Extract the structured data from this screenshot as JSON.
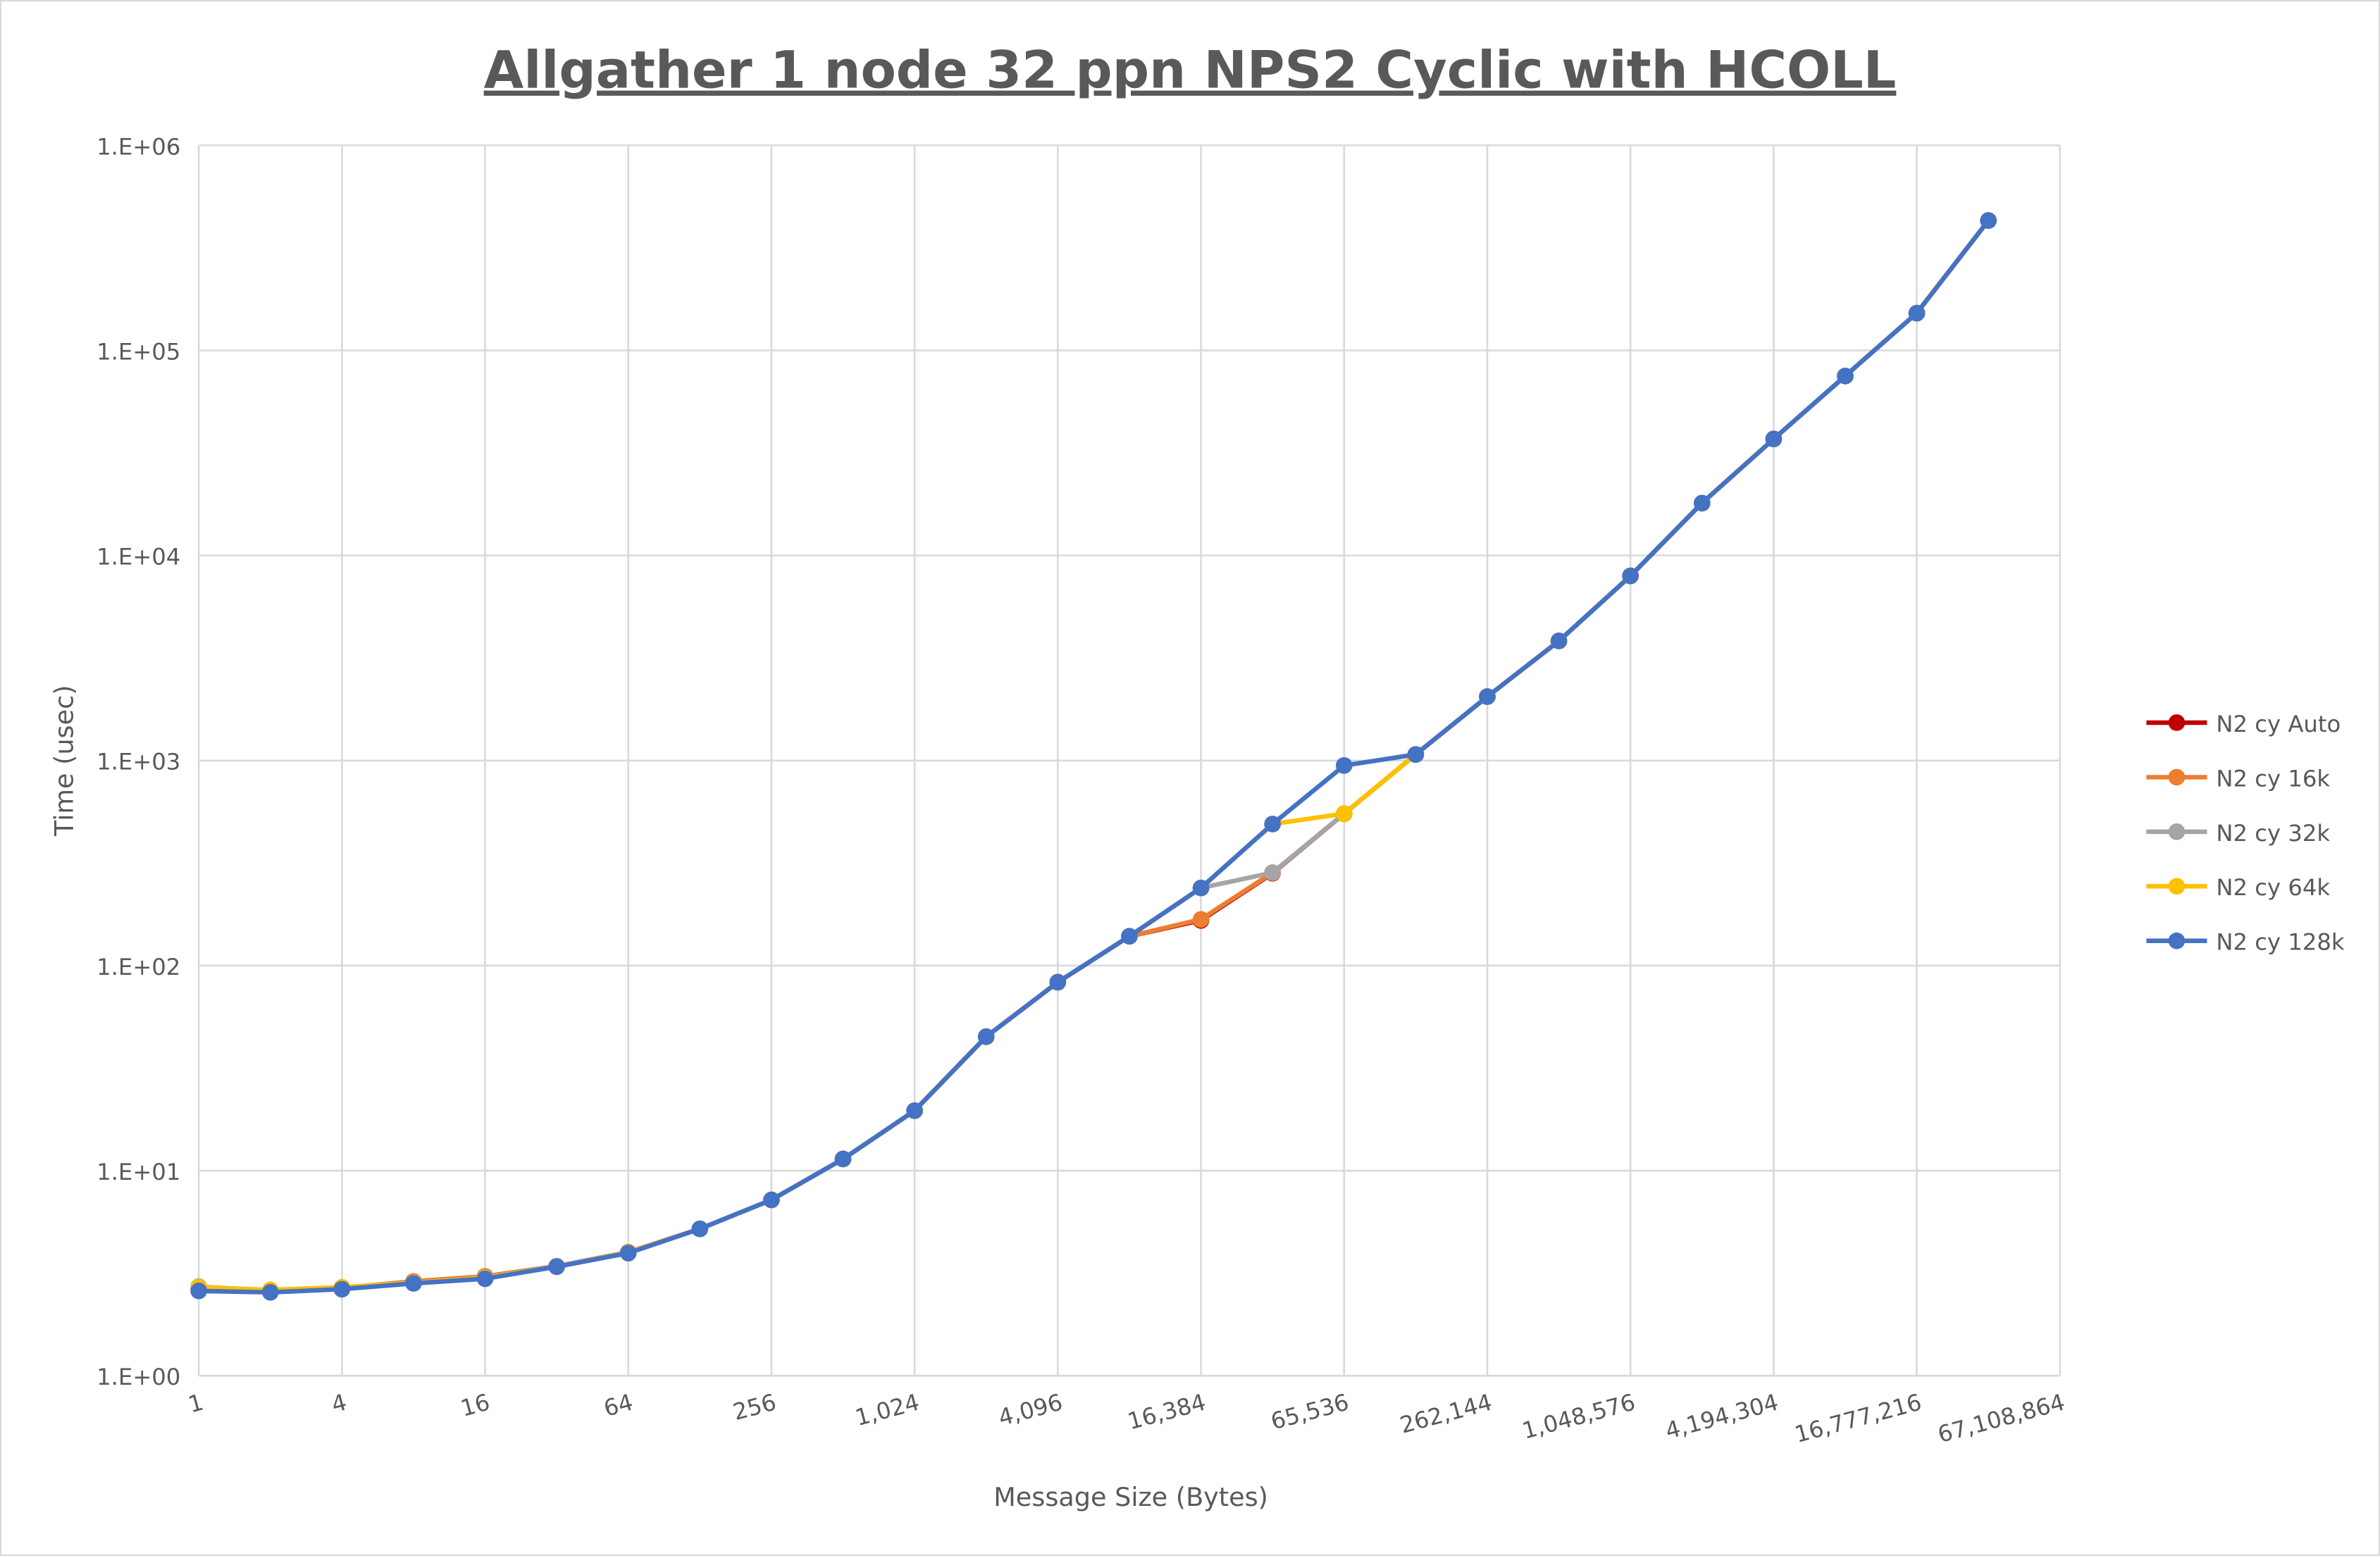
{
  "chart_data": {
    "type": "line",
    "title": "Allgather 1 node 32 ppn NPS2 Cyclic with HCOLL",
    "xlabel": "Message Size (Bytes)",
    "ylabel": "Time (usec)",
    "x_scale": "log2",
    "y_scale": "log10",
    "xlim": [
      1,
      67108864
    ],
    "ylim": [
      1,
      1000000
    ],
    "grid": true,
    "legend_position": "right",
    "x_ticks": [
      "1",
      "4",
      "16",
      "64",
      "256",
      "1,024",
      "4,096",
      "16,384",
      "65,536",
      "262,144",
      "1,048,576",
      "4,194,304",
      "16,777,216",
      "67,108,864"
    ],
    "y_ticks": [
      "1.E+00",
      "1.E+01",
      "1.E+02",
      "1.E+03",
      "1.E+04",
      "1.E+05",
      "1.E+06"
    ],
    "x": [
      1,
      2,
      4,
      8,
      16,
      32,
      64,
      128,
      256,
      512,
      1024,
      2048,
      4096,
      8192,
      16384,
      32768,
      65536,
      131072,
      262144,
      524288,
      1048576,
      2097152,
      4194304,
      8388608,
      16777216,
      33554432
    ],
    "series": [
      {
        "name": "N2 cy Auto",
        "color": "#c00000",
        "values": [
          2.65,
          2.6,
          2.68,
          2.88,
          3.05,
          3.42,
          4.0,
          5.2,
          7.2,
          11.4,
          19.6,
          45,
          83,
          139,
          166,
          282,
          550,
          1070,
          2050,
          3830,
          7950,
          18000,
          37000,
          75000,
          152000,
          430000
        ]
      },
      {
        "name": "N2 cy 16k",
        "color": "#ed7d31",
        "values": [
          2.65,
          2.6,
          2.68,
          2.88,
          3.05,
          3.42,
          4.0,
          5.2,
          7.2,
          11.4,
          19.6,
          45,
          83,
          139,
          168,
          284,
          550,
          1070,
          2050,
          3830,
          7950,
          18000,
          37000,
          75000,
          152000,
          430000
        ]
      },
      {
        "name": "N2 cy 32k",
        "color": "#a5a5a5",
        "values": [
          2.72,
          2.6,
          2.66,
          2.83,
          3.0,
          3.42,
          3.98,
          5.2,
          7.2,
          11.4,
          19.6,
          45,
          83,
          139,
          239,
          284,
          550,
          1070,
          2050,
          3830,
          7950,
          18000,
          37000,
          75000,
          152000,
          430000
        ]
      },
      {
        "name": "N2 cy 64k",
        "color": "#ffc000",
        "values": [
          2.7,
          2.62,
          2.7,
          2.84,
          3.0,
          3.4,
          3.98,
          5.2,
          7.2,
          11.4,
          19.6,
          45,
          83,
          139,
          239,
          490,
          550,
          1070,
          2050,
          3830,
          7950,
          18000,
          37000,
          75000,
          152000,
          430000
        ]
      },
      {
        "name": "N2 cy 128k",
        "color": "#4472c4",
        "values": [
          2.59,
          2.55,
          2.64,
          2.82,
          2.97,
          3.4,
          3.96,
          5.2,
          7.2,
          11.4,
          19.6,
          45,
          83,
          139,
          239,
          490,
          946,
          1070,
          2050,
          3830,
          7950,
          18000,
          37000,
          75000,
          152000,
          430000
        ]
      }
    ]
  }
}
